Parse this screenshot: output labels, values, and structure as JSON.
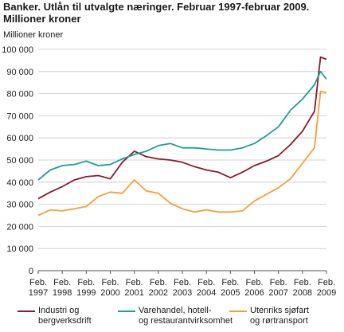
{
  "title": "Banker. Utlån til utvalgte næringer. Februar 1997-februar 2009. Millioner kroner",
  "chart_data": {
    "type": "line",
    "title": "Banker. Utlån til utvalgte næringer. Februar 1997-februar 2009. Millioner kroner",
    "ylabel": "Millioner kroner",
    "xlabel": "",
    "ylim": [
      0,
      100000
    ],
    "yticks": [
      "0",
      "10 000",
      "20 000",
      "30 000",
      "40 000",
      "50 000",
      "60 000",
      "70 000",
      "80 000",
      "90 000",
      "100 000"
    ],
    "x_tick_labels": [
      {
        "top": "Feb.",
        "bottom": "1997"
      },
      {
        "top": "Feb.",
        "bottom": "1998"
      },
      {
        "top": "Feb.",
        "bottom": "1999"
      },
      {
        "top": "Feb.",
        "bottom": "2000"
      },
      {
        "top": "Feb.",
        "bottom": "2001"
      },
      {
        "top": "Feb.",
        "bottom": "2002"
      },
      {
        "top": "Feb.",
        "bottom": "2003"
      },
      {
        "top": "Feb.",
        "bottom": "2004"
      },
      {
        "top": "Feb.",
        "bottom": "2005"
      },
      {
        "top": "Feb.",
        "bottom": "2006"
      },
      {
        "top": "Feb.",
        "bottom": "2007"
      },
      {
        "top": "Feb.",
        "bottom": "2008"
      },
      {
        "top": "Feb.",
        "bottom": "2009"
      }
    ],
    "x": [
      "1997-02",
      "1997-08",
      "1998-02",
      "1998-08",
      "1999-02",
      "1999-08",
      "2000-02",
      "2000-08",
      "2001-02",
      "2001-08",
      "2002-02",
      "2002-08",
      "2003-02",
      "2003-08",
      "2004-02",
      "2004-08",
      "2005-02",
      "2005-08",
      "2006-02",
      "2006-08",
      "2007-02",
      "2007-08",
      "2008-02",
      "2008-08",
      "2008-11",
      "2009-02"
    ],
    "grid": true,
    "legend_position": "bottom",
    "series": [
      {
        "name": "Industri og bergverksdrift",
        "color": "#8b1a2b",
        "values": [
          32500,
          35500,
          38000,
          41000,
          42500,
          43000,
          41500,
          49000,
          54000,
          51500,
          50500,
          50000,
          49000,
          47000,
          45500,
          44500,
          42000,
          44500,
          47500,
          49500,
          52000,
          57000,
          63000,
          72000,
          96500,
          95500
        ]
      },
      {
        "name": "Varehandel, hotell- og restaurantvirksomhet",
        "color": "#1e9e96",
        "values": [
          41000,
          45500,
          47500,
          48000,
          49500,
          47500,
          48000,
          50500,
          52500,
          54000,
          56500,
          57500,
          55500,
          55500,
          55000,
          54500,
          54500,
          55500,
          57500,
          61000,
          65000,
          72500,
          77500,
          84000,
          90000,
          86500
        ]
      },
      {
        "name": "Utenriks sjøfart og rørtransport",
        "color": "#f5a033",
        "values": [
          25000,
          27500,
          27000,
          28000,
          29000,
          33500,
          35500,
          35000,
          41000,
          36000,
          35000,
          30500,
          28000,
          26500,
          27500,
          26500,
          26500,
          27000,
          31500,
          34500,
          37500,
          41500,
          48500,
          55500,
          81000,
          80500
        ]
      }
    ]
  }
}
